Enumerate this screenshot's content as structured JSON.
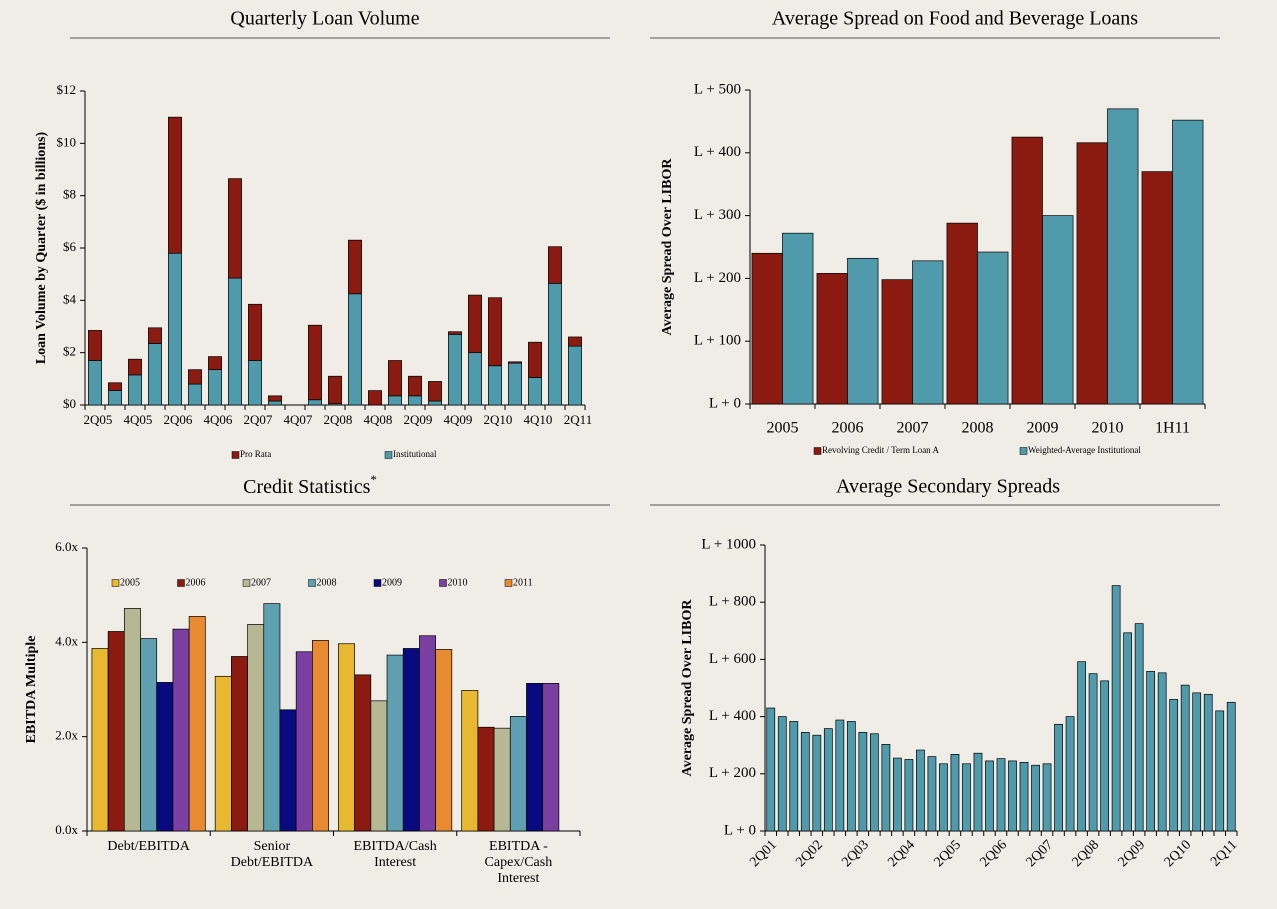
{
  "chart_data": [
    {
      "type": "bar",
      "stacked": true,
      "title": "Quarterly Loan Volume",
      "y_label": "Loan Volume by Quarter ($ in billions)",
      "categories": [
        "2Q05",
        null,
        "4Q05",
        null,
        "2Q06",
        null,
        "4Q06",
        null,
        "2Q07",
        null,
        "4Q07",
        null,
        "2Q08",
        null,
        "4Q08",
        null,
        "2Q09",
        null,
        "4Q09",
        null,
        "2Q10",
        null,
        "4Q10",
        null,
        "2Q11"
      ],
      "series": [
        {
          "name": "Institutional",
          "color": "#4f9aab",
          "values": [
            1.7,
            0.55,
            1.15,
            2.35,
            5.8,
            0.8,
            1.35,
            4.85,
            1.7,
            0.15,
            0,
            0.2,
            0.05,
            4.25,
            0,
            0.35,
            0.35,
            0.15,
            2.7,
            2.0,
            1.5,
            1.6,
            1.05,
            4.65,
            2.25
          ]
        },
        {
          "name": "Pro Rata",
          "color": "#8b1a10",
          "values": [
            1.15,
            0.3,
            0.6,
            0.6,
            5.2,
            0.55,
            0.5,
            3.8,
            2.15,
            0.2,
            0,
            2.85,
            1.05,
            2.05,
            0.55,
            1.35,
            0.75,
            0.75,
            0.1,
            2.2,
            2.6,
            0.05,
            1.35,
            1.4,
            0.35
          ]
        }
      ],
      "legend_order": [
        1,
        0
      ],
      "legend": "bottom",
      "ylim": [
        0,
        12
      ],
      "yticks": [
        {
          "value": 0,
          "label": "$0"
        },
        {
          "value": 2,
          "label": "$2"
        },
        {
          "value": 4,
          "label": "$4"
        },
        {
          "value": 6,
          "label": "$6"
        },
        {
          "value": 8,
          "label": "$8"
        },
        {
          "value": 10,
          "label": "$10"
        },
        {
          "value": 12,
          "label": "$12"
        }
      ]
    },
    {
      "type": "bar",
      "title": "Average Spread on Food and Beverage Loans",
      "y_label": "Average Spread Over LIBOR",
      "categories": [
        "2005",
        "2006",
        "2007",
        "2008",
        "2009",
        "2010",
        "1H11"
      ],
      "series": [
        {
          "name": "Revolving Credit / Term Loan A",
          "color": "#8b1a10",
          "values": [
            240,
            208,
            198,
            288,
            425,
            416,
            370
          ]
        },
        {
          "name": "Weighted-Average Institutional",
          "color": "#4f9aab",
          "values": [
            272,
            232,
            228,
            242,
            300,
            470,
            452
          ]
        }
      ],
      "legend": "bottom",
      "ylim": [
        0,
        500
      ],
      "yticks": [
        {
          "value": 0,
          "label": "L + 0"
        },
        {
          "value": 100,
          "label": "L + 100"
        },
        {
          "value": 200,
          "label": "L + 200"
        },
        {
          "value": 300,
          "label": "L + 300"
        },
        {
          "value": 400,
          "label": "L + 400"
        },
        {
          "value": 500,
          "label": "L + 500"
        }
      ]
    },
    {
      "type": "bar",
      "title": "Credit Statistics",
      "title_note": "*",
      "y_label": "EBITDA Multiple",
      "categories": [
        "Debt/EBITDA",
        "Senior Debt/EBITDA",
        "EBITDA/Cash Interest",
        "EBITDA - Capex/Cash Interest"
      ],
      "series": [
        {
          "name": "2005",
          "color": "#e8b830",
          "values": [
            3.87,
            3.28,
            3.97,
            2.98
          ]
        },
        {
          "name": "2006",
          "color": "#8b1a10",
          "values": [
            4.23,
            3.7,
            3.31,
            2.2
          ]
        },
        {
          "name": "2007",
          "color": "#b5b892",
          "values": [
            4.72,
            4.38,
            2.76,
            2.18
          ]
        },
        {
          "name": "2008",
          "color": "#5fa0b0",
          "values": [
            4.08,
            4.82,
            3.73,
            2.43
          ]
        },
        {
          "name": "2009",
          "color": "#0a0a80",
          "values": [
            3.15,
            2.57,
            3.87,
            3.13
          ]
        },
        {
          "name": "2010",
          "color": "#7a3fa0",
          "values": [
            4.28,
            3.8,
            4.14,
            3.13
          ]
        },
        {
          "name": "2011",
          "color": "#e88a30",
          "values": [
            4.55,
            4.04,
            3.85,
            null
          ]
        }
      ],
      "legend": "top",
      "ylim": [
        0,
        6
      ],
      "yticks": [
        {
          "value": 0,
          "label": "0.0x"
        },
        {
          "value": 2,
          "label": "2.0x"
        },
        {
          "value": 4,
          "label": "4.0x"
        },
        {
          "value": 6,
          "label": "6.0x"
        }
      ]
    },
    {
      "type": "bar",
      "title": "Average Secondary Spreads",
      "y_label": "Average Spread Over LIBOR",
      "categories": [
        "2Q01",
        null,
        null,
        null,
        "2Q02",
        null,
        null,
        null,
        "2Q03",
        null,
        null,
        null,
        "2Q04",
        null,
        null,
        null,
        "2Q05",
        null,
        null,
        null,
        "2Q06",
        null,
        null,
        null,
        "2Q07",
        null,
        null,
        null,
        "2Q08",
        null,
        null,
        null,
        "2Q09",
        null,
        null,
        null,
        "2Q10",
        null,
        null,
        null,
        "2Q11"
      ],
      "series": [
        {
          "name": null,
          "color": "#4f9aab",
          "values": [
            430,
            400,
            383,
            345,
            335,
            358,
            388,
            383,
            345,
            340,
            303,
            255,
            250,
            283,
            260,
            235,
            268,
            235,
            272,
            245,
            253,
            245,
            240,
            230,
            235,
            373,
            400,
            592,
            550,
            525,
            858,
            693,
            725,
            558,
            553,
            460,
            510,
            483,
            478,
            420,
            450
          ]
        }
      ],
      "ylim": [
        0,
        1000
      ],
      "yticks": [
        {
          "value": 0,
          "label": "L + 0"
        },
        {
          "value": 200,
          "label": "L + 200"
        },
        {
          "value": 400,
          "label": "L + 400"
        },
        {
          "value": 600,
          "label": "L + 600"
        },
        {
          "value": 800,
          "label": "L + 800"
        },
        {
          "value": 1000,
          "label": "L + 1000"
        }
      ]
    }
  ]
}
